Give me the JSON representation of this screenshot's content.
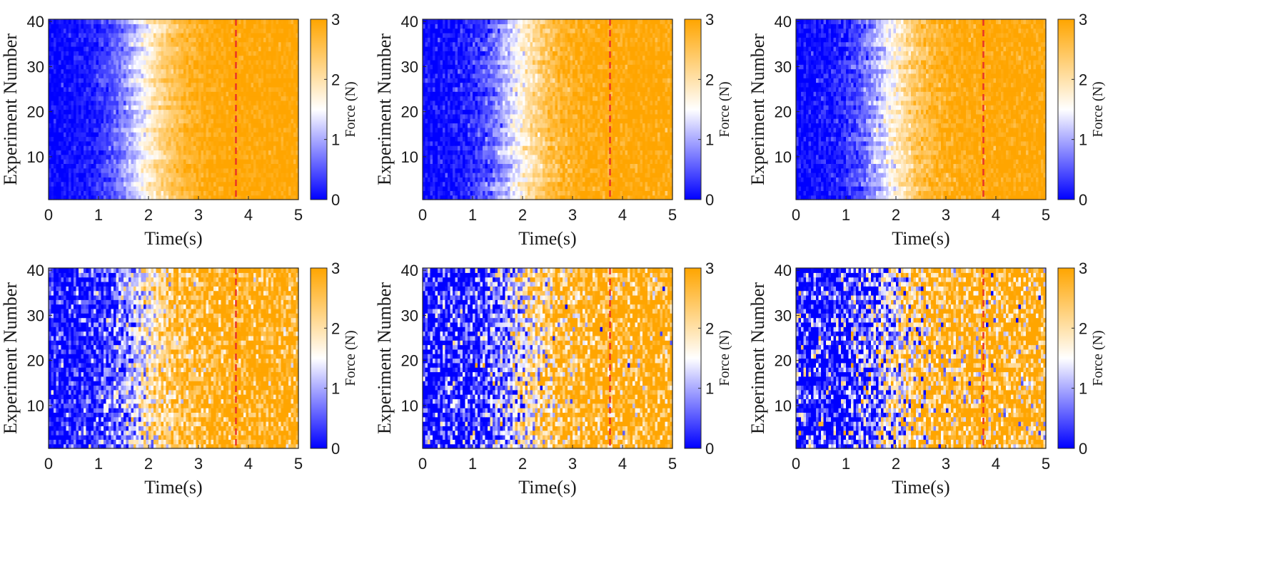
{
  "chart_data": [
    {
      "type": "heatmap",
      "panel": "row1-col1",
      "xlabel": "Time(s)",
      "ylabel": "Experiment Number",
      "xlim": [
        0,
        5
      ],
      "ylim": [
        0.5,
        40.5
      ],
      "x_ticks": [
        0,
        1,
        2,
        3,
        4,
        5
      ],
      "y_ticks": [
        10,
        20,
        30,
        40
      ],
      "n_experiments": 40,
      "n_time_bins": 100,
      "noise_level": 0.15,
      "transition_time": 1.9,
      "dashed_line_x": 3.75,
      "dashed_line_color": "#e8332a",
      "colorbar": {
        "label": "Force (N)",
        "range": [
          0,
          3
        ],
        "ticks": [
          0,
          1,
          2,
          3
        ],
        "colors": [
          "#0000ff",
          "#ffffff",
          "#ffa500"
        ]
      }
    },
    {
      "type": "heatmap",
      "panel": "row1-col2",
      "xlabel": "Time(s)",
      "ylabel": "Experiment Number",
      "xlim": [
        0,
        5
      ],
      "ylim": [
        0.5,
        40.5
      ],
      "x_ticks": [
        0,
        1,
        2,
        3,
        4,
        5
      ],
      "y_ticks": [
        10,
        20,
        30,
        40
      ],
      "n_experiments": 40,
      "n_time_bins": 100,
      "noise_level": 0.2,
      "transition_time": 1.9,
      "dashed_line_x": 3.75,
      "dashed_line_color": "#e8332a",
      "colorbar": {
        "label": "Force (N)",
        "range": [
          0,
          3
        ],
        "ticks": [
          0,
          1,
          2,
          3
        ],
        "colors": [
          "#0000ff",
          "#ffffff",
          "#ffa500"
        ]
      }
    },
    {
      "type": "heatmap",
      "panel": "row1-col3",
      "xlabel": "Time(s)",
      "ylabel": "Experiment Number",
      "xlim": [
        0,
        5
      ],
      "ylim": [
        0.5,
        40.5
      ],
      "x_ticks": [
        0,
        1,
        2,
        3,
        4,
        5
      ],
      "y_ticks": [
        10,
        20,
        30,
        40
      ],
      "n_experiments": 40,
      "n_time_bins": 100,
      "noise_level": 0.2,
      "transition_time": 1.9,
      "dashed_line_x": 3.75,
      "dashed_line_color": "#e8332a",
      "colorbar": {
        "label": "Force (N)",
        "range": [
          0,
          3
        ],
        "ticks": [
          0,
          1,
          2,
          3
        ],
        "colors": [
          "#0000ff",
          "#ffffff",
          "#ffa500"
        ]
      }
    },
    {
      "type": "heatmap",
      "panel": "row2-col1",
      "xlabel": "Time(s)",
      "ylabel": "Experiment Number",
      "xlim": [
        0,
        5
      ],
      "ylim": [
        0.5,
        40.5
      ],
      "x_ticks": [
        0,
        1,
        2,
        3,
        4,
        5
      ],
      "y_ticks": [
        10,
        20,
        30,
        40
      ],
      "n_experiments": 40,
      "n_time_bins": 100,
      "noise_level": 0.6,
      "transition_time": 1.9,
      "dashed_line_x": 3.75,
      "dashed_line_color": "#e8332a",
      "colorbar": {
        "label": "Force (N)",
        "range": [
          0,
          3
        ],
        "ticks": [
          0,
          1,
          2,
          3
        ],
        "colors": [
          "#0000ff",
          "#ffffff",
          "#ffa500"
        ]
      }
    },
    {
      "type": "heatmap",
      "panel": "row2-col2",
      "xlabel": "Time(s)",
      "ylabel": "Experiment Number",
      "xlim": [
        0,
        5
      ],
      "ylim": [
        0.5,
        40.5
      ],
      "x_ticks": [
        0,
        1,
        2,
        3,
        4,
        5
      ],
      "y_ticks": [
        10,
        20,
        30,
        40
      ],
      "n_experiments": 40,
      "n_time_bins": 100,
      "noise_level": 0.85,
      "transition_time": 2.0,
      "dashed_line_x": 3.75,
      "dashed_line_color": "#e8332a",
      "colorbar": {
        "label": "Force (N)",
        "range": [
          0,
          3
        ],
        "ticks": [
          0,
          1,
          2,
          3
        ],
        "colors": [
          "#0000ff",
          "#ffffff",
          "#ffa500"
        ]
      }
    },
    {
      "type": "heatmap",
      "panel": "row2-col3",
      "xlabel": "Time(s)",
      "ylabel": "Experiment Number",
      "xlim": [
        0,
        5
      ],
      "ylim": [
        0.5,
        40.5
      ],
      "x_ticks": [
        0,
        1,
        2,
        3,
        4,
        5
      ],
      "y_ticks": [
        10,
        20,
        30,
        40
      ],
      "n_experiments": 40,
      "n_time_bins": 100,
      "noise_level": 1.05,
      "transition_time": 2.0,
      "dashed_line_x": 3.75,
      "dashed_line_color": "#e8332a",
      "colorbar": {
        "label": "Force (N)",
        "range": [
          0,
          3
        ],
        "ticks": [
          0,
          1,
          2,
          3
        ],
        "colors": [
          "#0000ff",
          "#ffffff",
          "#ffa500"
        ]
      }
    }
  ]
}
